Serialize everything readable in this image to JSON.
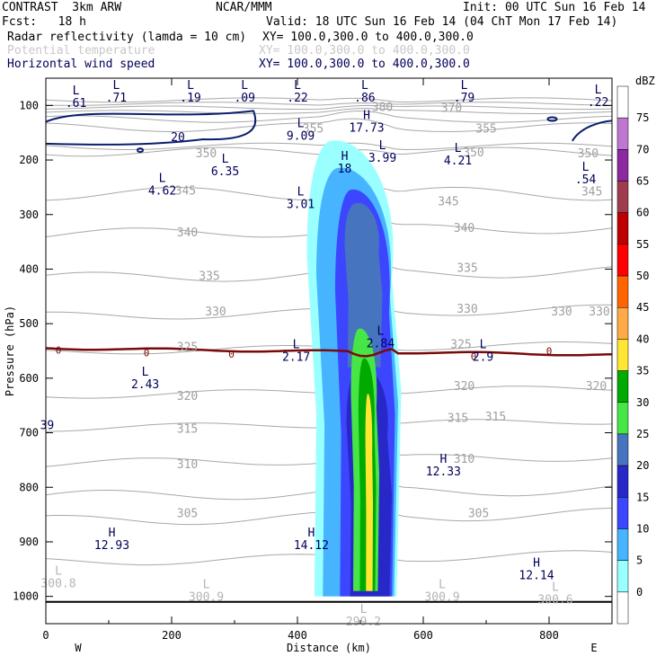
{
  "header": {
    "model": "CONTRAST  3km ARW",
    "center": "NCAR/MMM",
    "init": "Init: 00 UTC Sun 16 Feb 14",
    "fcst": "Fcst:   18 h",
    "valid": "Valid: 18 UTC Sun 16 Feb 14 (04 ChT Mon 17 Feb 14)",
    "fields": [
      {
        "name": "Radar reflectivity (lamda = 10 cm)",
        "xy": "XY= 100.0,300.0 to 400.0,300.0",
        "color": "#000000"
      },
      {
        "name": "Potential temperature",
        "xy": "XY= 100.0,300.0 to 400.0,300.0",
        "color": "#c8c8c8"
      },
      {
        "name": "Horizontal wind speed",
        "xy": "XY= 100.0,300.0 to 400.0,300.0",
        "color": "#00005a"
      }
    ]
  },
  "chart_data": {
    "type": "cross-section",
    "xlabel": "Distance (km)",
    "ylabel": "Pressure (hPa)",
    "x_ticks": [
      0,
      200,
      400,
      600,
      800
    ],
    "y_ticks": [
      100,
      200,
      300,
      400,
      500,
      600,
      700,
      800,
      900,
      1000
    ],
    "xlim": [
      0,
      900
    ],
    "ylim": [
      1050,
      50
    ],
    "x_end_labels": {
      "left": "W",
      "right": "E"
    },
    "colorbar": {
      "unit": "dBZ",
      "levels": [
        0,
        5,
        10,
        15,
        20,
        25,
        30,
        35,
        40,
        45,
        50,
        55,
        60,
        65,
        70,
        75
      ],
      "colors": [
        "#ffffff",
        "#9affff",
        "#46b4ff",
        "#3c46ff",
        "#2828c8",
        "#4674be",
        "#46e646",
        "#00aa00",
        "#ffe632",
        "#ffaa46",
        "#ff6400",
        "#ff0000",
        "#be0000",
        "#a03c50",
        "#8c28a0",
        "#be78d2",
        "#ffffff"
      ]
    },
    "theta_labels": [
      {
        "text": "370",
        "x": 645,
        "p": 112
      },
      {
        "text": "380",
        "x": 535,
        "p": 110
      },
      {
        "text": "355",
        "x": 425,
        "p": 150
      },
      {
        "text": "355",
        "x": 700,
        "p": 150
      },
      {
        "text": "350",
        "x": 255,
        "p": 195
      },
      {
        "text": "350",
        "x": 680,
        "p": 193
      },
      {
        "text": "350",
        "x": 862,
        "p": 195
      },
      {
        "text": "345",
        "x": 222,
        "p": 263
      },
      {
        "text": "345",
        "x": 640,
        "p": 283
      },
      {
        "text": "345",
        "x": 868,
        "p": 265
      },
      {
        "text": "340",
        "x": 225,
        "p": 340
      },
      {
        "text": "340",
        "x": 665,
        "p": 332
      },
      {
        "text": "335",
        "x": 260,
        "p": 420
      },
      {
        "text": "335",
        "x": 670,
        "p": 405
      },
      {
        "text": "330",
        "x": 270,
        "p": 485
      },
      {
        "text": "330",
        "x": 670,
        "p": 480
      },
      {
        "text": "330",
        "x": 820,
        "p": 485
      },
      {
        "text": "330",
        "x": 880,
        "p": 485
      },
      {
        "text": "325",
        "x": 225,
        "p": 550
      },
      {
        "text": "325",
        "x": 660,
        "p": 545
      },
      {
        "text": "320",
        "x": 225,
        "p": 640
      },
      {
        "text": "320",
        "x": 665,
        "p": 622
      },
      {
        "text": "320",
        "x": 875,
        "p": 622
      },
      {
        "text": "315",
        "x": 225,
        "p": 700
      },
      {
        "text": "315",
        "x": 655,
        "p": 680
      },
      {
        "text": "315",
        "x": 715,
        "p": 678
      },
      {
        "text": "310",
        "x": 225,
        "p": 765
      },
      {
        "text": "310",
        "x": 665,
        "p": 755
      },
      {
        "text": "305",
        "x": 225,
        "p": 855
      },
      {
        "text": "305",
        "x": 688,
        "p": 855
      }
    ],
    "zero_wind_labels": [
      {
        "text": "0",
        "x": 20,
        "p": 548
      },
      {
        "text": "0",
        "x": 160,
        "p": 553
      },
      {
        "text": "0",
        "x": 295,
        "p": 556
      },
      {
        "text": "0",
        "x": 680,
        "p": 560
      },
      {
        "text": "0",
        "x": 800,
        "p": 550
      }
    ],
    "speed_labels": [
      {
        "text": "20",
        "x": 210,
        "p": 165
      }
    ],
    "extrema": [
      {
        "type": "L",
        "value": ".61",
        "x": 48,
        "p": 80,
        "color": "#00005a"
      },
      {
        "type": "L",
        "value": ".71",
        "x": 112,
        "p": 70,
        "color": "#00005a"
      },
      {
        "type": "L",
        "value": ".19",
        "x": 230,
        "p": 70,
        "color": "#00005a"
      },
      {
        "type": "L",
        "value": ".09",
        "x": 316,
        "p": 70,
        "color": "#00005a"
      },
      {
        "type": "L",
        "value": ".22",
        "x": 400,
        "p": 70,
        "color": "#00005a"
      },
      {
        "type": "L",
        "value": ".86",
        "x": 507,
        "p": 70,
        "color": "#00005a"
      },
      {
        "type": "L",
        "value": ".79",
        "x": 665,
        "p": 70,
        "color": "#00005a"
      },
      {
        "type": "L",
        "value": ".22",
        "x": 878,
        "p": 78,
        "color": "#00005a"
      },
      {
        "type": "H",
        "value": "17.73",
        "x": 510,
        "p": 125,
        "color": "#00005a"
      },
      {
        "type": "L",
        "value": "9.09",
        "x": 405,
        "p": 140,
        "color": "#00005a"
      },
      {
        "type": "L",
        "value": "3.99",
        "x": 535,
        "p": 180,
        "color": "#00005a"
      },
      {
        "type": "L",
        "value": "4.21",
        "x": 655,
        "p": 185,
        "color": "#00005a"
      },
      {
        "type": "H",
        "value": "18",
        "x": 475,
        "p": 200,
        "color": "#00005a"
      },
      {
        "type": "L",
        "value": "6.35",
        "x": 285,
        "p": 205,
        "color": "#00005a"
      },
      {
        "type": "L",
        "value": ".54",
        "x": 858,
        "p": 220,
        "color": "#00005a"
      },
      {
        "type": "L",
        "value": "4.62",
        "x": 185,
        "p": 240,
        "color": "#00005a"
      },
      {
        "type": "L",
        "value": "3.01",
        "x": 405,
        "p": 265,
        "color": "#00005a"
      },
      {
        "type": "L",
        "value": "2.84",
        "x": 532,
        "p": 520,
        "color": "#00005a"
      },
      {
        "type": "L",
        "value": "2.17",
        "x": 398,
        "p": 545,
        "color": "#00005a"
      },
      {
        "type": "L",
        "value": "2.9",
        "x": 695,
        "p": 545,
        "color": "#00005a"
      },
      {
        "type": "L",
        "value": "2.43",
        "x": 158,
        "p": 595,
        "color": "#00005a"
      },
      {
        "type": "H",
        "value": "12.33",
        "x": 632,
        "p": 755,
        "color": "#00005a"
      },
      {
        "type": "H",
        "value": "12.93",
        "x": 105,
        "p": 890,
        "color": "#00005a"
      },
      {
        "type": "H",
        "value": "14.12",
        "x": 422,
        "p": 890,
        "color": "#00005a"
      },
      {
        "type": "H",
        "value": "12.14",
        "x": 780,
        "p": 945,
        "color": "#00005a"
      },
      {
        "type": "L",
        "value": "300.8",
        "x": 20,
        "p": 960,
        "color": "#b4b4b4"
      },
      {
        "type": "L",
        "value": "300.9",
        "x": 255,
        "p": 985,
        "color": "#b4b4b4"
      },
      {
        "type": "L",
        "value": "300.9",
        "x": 630,
        "p": 985,
        "color": "#b4b4b4"
      },
      {
        "type": "L",
        "value": "300.6",
        "x": 810,
        "p": 990,
        "color": "#b4b4b4"
      },
      {
        "type": "L",
        "value": "299.2",
        "x": 505,
        "p": 1030,
        "color": "#b4b4b4"
      },
      {
        "type": "",
        "value": "39",
        "x": 2,
        "p": 670,
        "color": "#00005a"
      }
    ],
    "reflectivity_core": {
      "x_range_km": [
        475,
        555
      ],
      "p_top": 170,
      "p_bottom": 1000
    }
  }
}
